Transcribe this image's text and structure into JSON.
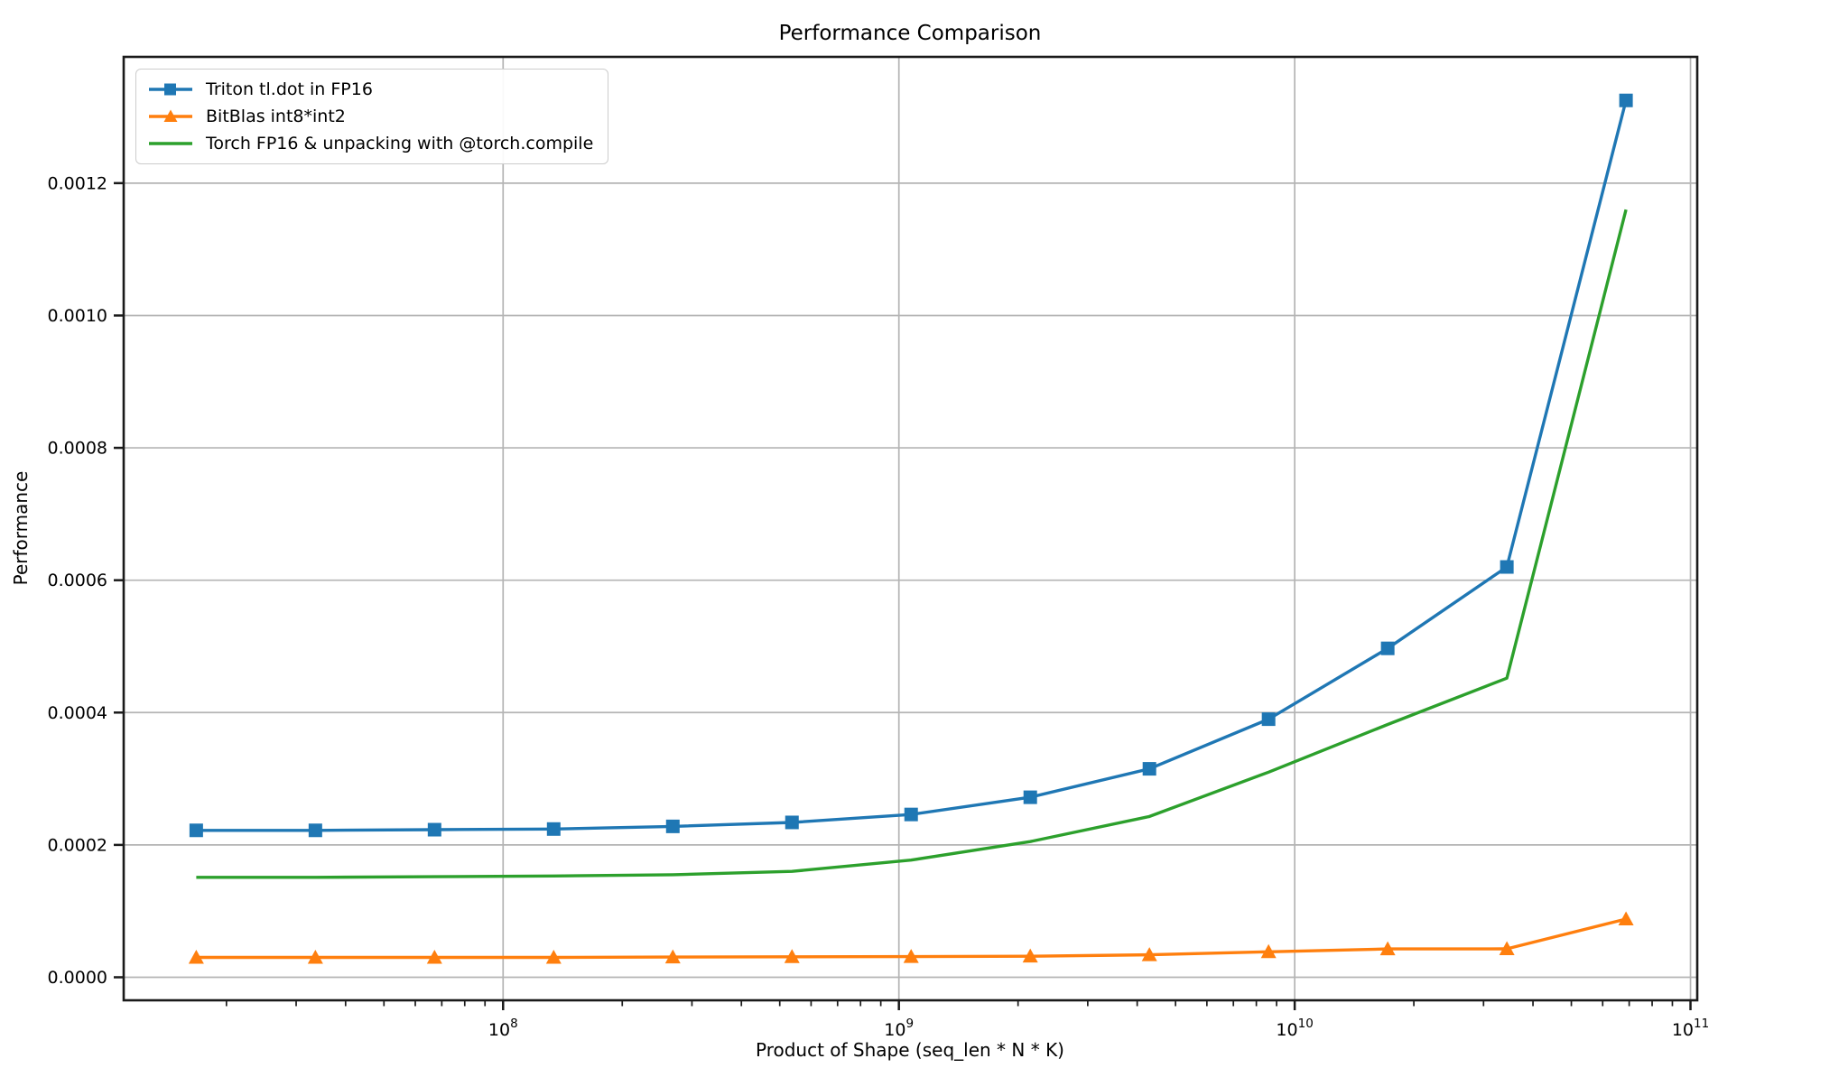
{
  "chart_data": {
    "type": "line",
    "title": "Performance Comparison",
    "xlabel": "Product of Shape (seq_len * N * K)",
    "ylabel": "Performance",
    "x_scale": "log",
    "grid": true,
    "legend_position": "upper left",
    "xlim": [
      11000000,
      104000000000
    ],
    "ylim": [
      -3.48e-05,
      0.0013908
    ],
    "x_tick_base": "10",
    "x_tick_exponents": [
      "8",
      "9",
      "10",
      "11"
    ],
    "y_ticks": [
      0.0,
      0.0002,
      0.0004,
      0.0006,
      0.0008,
      0.001,
      0.0012
    ],
    "y_tick_labels": [
      "0.0000",
      "0.0002",
      "0.0004",
      "0.0006",
      "0.0008",
      "0.0010",
      "0.0012"
    ],
    "x": [
      16777216,
      33554432,
      67108864,
      134217728,
      268435456,
      536870912,
      1073741824,
      2147483648,
      4294967296,
      8589934592,
      17179869184,
      34359738368,
      68719476736
    ],
    "series": [
      {
        "name": "Triton tl.dot in FP16",
        "color": "#1f77b4",
        "marker": "square",
        "values": [
          0.000222,
          0.000222,
          0.000223,
          0.000224,
          0.000228,
          0.000234,
          0.000246,
          0.000272,
          0.000315,
          0.00039,
          0.000497,
          0.00062,
          0.001325
        ]
      },
      {
        "name": "BitBlas int8*int2",
        "color": "#ff7f0e",
        "marker": "triangle",
        "values": [
          3e-05,
          3e-05,
          3e-05,
          3e-05,
          3.05e-05,
          3.1e-05,
          3.12e-05,
          3.18e-05,
          3.4e-05,
          3.85e-05,
          4.28e-05,
          4.3e-05,
          8.8e-05
        ]
      },
      {
        "name": "Torch FP16 & unpacking with @torch.compile",
        "color": "#2ca02c",
        "marker": "none",
        "values": [
          0.000151,
          0.000151,
          0.000152,
          0.000153,
          0.000155,
          0.00016,
          0.000177,
          0.000205,
          0.000243,
          0.00031,
          0.000382,
          0.000452,
          0.00116
        ]
      }
    ],
    "colors": {
      "grid": "#b4b4b4",
      "spine": "#1a1a1a",
      "text": "#000000",
      "background": "#ffffff"
    }
  }
}
